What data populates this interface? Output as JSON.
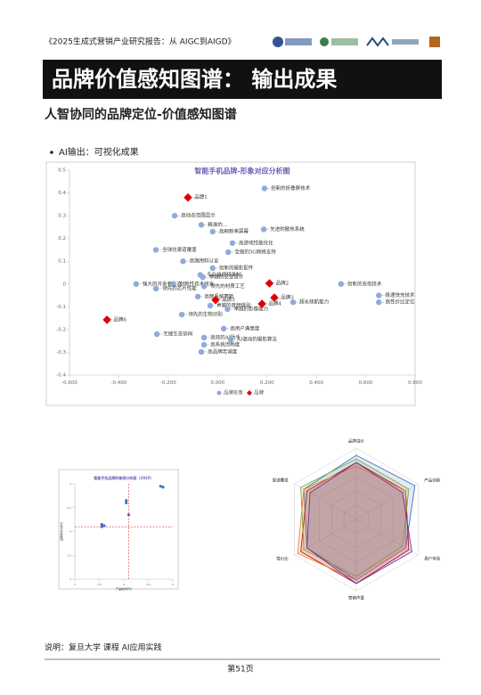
{
  "header": {
    "report": "《2025生成式营销产业研究报告：从 AIGC到AIGD》"
  },
  "title": "品牌价值感知图谱： 输出成果",
  "subtitle": "人智协同的品牌定位-价值感知图谱",
  "bullet": "AI输出：可视化成果",
  "chart_data": [
    {
      "type": "scatter",
      "title": "智能手机品牌-形象对应分析图",
      "xlim": [
        -0.6,
        0.8
      ],
      "ylim": [
        -0.4,
        0.5
      ],
      "xticks": [
        {
          "value": -0.6,
          "label": "-0.600"
        },
        {
          "value": -0.4,
          "label": "-0.400"
        },
        {
          "value": -0.2,
          "label": "-0.200"
        },
        {
          "value": 0,
          "label": "0.000"
        },
        {
          "value": 0.2,
          "label": "0.200"
        },
        {
          "value": 0.4,
          "label": "0.400"
        },
        {
          "value": 0.6,
          "label": "0.600"
        },
        {
          "value": 0.8,
          "label": "0.800"
        }
      ],
      "yticks": [
        -0.4,
        -0.3,
        -0.2,
        -0.1,
        0,
        0.1,
        0.2,
        0.3,
        0.4,
        0.5
      ],
      "grid": false,
      "legend": "bottom",
      "series": [
        {
          "name": "品牌形象",
          "color": "#8faadc",
          "marker": "circle",
          "labels": [
            "创新的折叠屏技术",
            "高动态范围显示",
            "精准的…",
            "高刷新率屏幕",
            "先进的散热系统",
            "高游戏性能优化",
            "全面的5G网络支持",
            "全球化渠道覆盖",
            "高端用料认证",
            "创新的摄影配件",
            "专业级视频录制",
            "卓越的交互设计",
            "强大的开发者生态",
            "创新性技术研发",
            "领先的材质工艺",
            "领先的芯片性能",
            "高频系统更新",
            "卓越的音频体验",
            "卓越的影像能力",
            "超长续航能力",
            "创新的充电技术",
            "极速快充技术",
            "高性价比定位",
            "领先的生物识别",
            "高用户满意度",
            "无缝生态协同",
            "高效的AI助手",
            "AI驱动的摄影算法",
            "高系统流畅度",
            "高品牌忠诚度"
          ],
          "x": [
            0.19,
            -0.174,
            -0.066,
            -0.02,
            0.187,
            0.06,
            0.043,
            -0.25,
            -0.14,
            -0.02,
            -0.07,
            -0.06,
            -0.33,
            -0.18,
            -0.055,
            -0.25,
            -0.08,
            -0.03,
            0.04,
            0.306,
            0.5,
            0.653,
            0.653,
            -0.145,
            0.025,
            -0.246,
            -0.055,
            0.053,
            -0.055,
            -0.066
          ],
          "values": [
            0.42,
            0.3,
            0.26,
            0.23,
            0.24,
            0.18,
            0.14,
            0.15,
            0.1,
            0.07,
            0.04,
            0.03,
            0,
            0,
            -0.01,
            -0.02,
            -0.055,
            -0.095,
            -0.11,
            -0.08,
            0,
            -0.05,
            -0.08,
            -0.134,
            -0.196,
            -0.22,
            -0.235,
            -0.243,
            -0.267,
            -0.298
          ]
        },
        {
          "name": "品牌",
          "color": "#e00000",
          "marker": "diamond",
          "labels": [
            "品牌1",
            "品牌2",
            "品牌3",
            "品牌4",
            "品牌5",
            "品牌6"
          ],
          "x": [
            -0.12,
            0.21,
            0.23,
            0.18,
            -0.008,
            -0.448
          ],
          "values": [
            0.38,
            0.003,
            -0.06,
            -0.087,
            -0.07,
            -0.157
          ]
        }
      ]
    },
    {
      "type": "scatter",
      "title": "智能手机品牌四象限分析图（2025）",
      "xlabel": "产品技术评分",
      "ylabel": "品牌影响力评分",
      "xlim": [
        3,
        5
      ],
      "ylim": [
        3,
        5
      ],
      "xticks": [
        3,
        3.5,
        4,
        4.5,
        5
      ],
      "yticks": [
        3,
        3.5,
        4,
        4.5,
        5
      ],
      "dividers": [
        4.1,
        4.1
      ],
      "grid": false,
      "series": [
        {
          "color": "#4472c4",
          "marker": "circle",
          "x": [
            4.75,
            4.8,
            4.05,
            4.05,
            4.1,
            3.55,
            3.55,
            3.6
          ],
          "values": [
            4.95,
            4.93,
            4.65,
            4.6,
            4.35,
            4.15,
            4.1,
            4.12
          ]
        }
      ]
    },
    {
      "type": "radar",
      "axes": [
        "品牌溢价",
        "产品创新",
        "用户体验",
        "营销声量",
        "性价比",
        "渠道覆盖"
      ],
      "rlim": [
        0,
        10
      ],
      "rticks": [
        2,
        4,
        6,
        8,
        10
      ],
      "series": [
        {
          "color": "#4472c4",
          "values": [
            9,
            9.5,
            8,
            8.5,
            8,
            8.5
          ]
        },
        {
          "color": "#c00000",
          "values": [
            8,
            8,
            8.5,
            9,
            9,
            8
          ]
        },
        {
          "color": "#70ad47",
          "values": [
            8.5,
            8.5,
            7.5,
            8,
            8.5,
            9
          ]
        },
        {
          "color": "#ed7d31",
          "values": [
            7.5,
            8,
            8,
            8.5,
            9.5,
            8.5
          ]
        },
        {
          "color": "#7030a0",
          "values": [
            8,
            7.5,
            9,
            9,
            8,
            7.5
          ]
        }
      ]
    }
  ],
  "footer": {
    "note": "说明：复旦大学 课程 AI应用实践",
    "page": "第51页"
  }
}
